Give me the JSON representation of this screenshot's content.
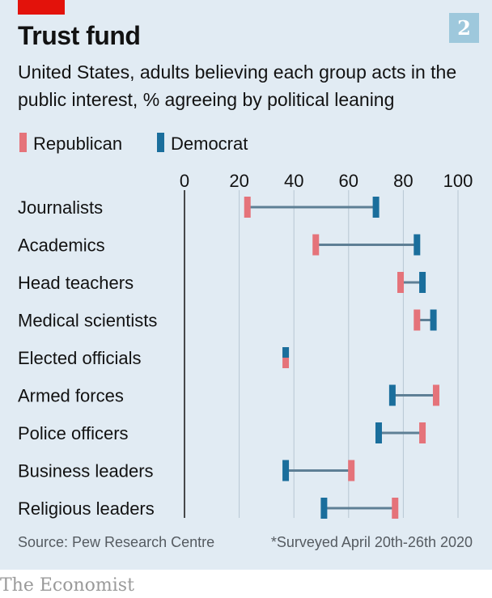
{
  "chart_number": "2",
  "colors": {
    "republican": "#e5737a",
    "democrat": "#1a6e9c",
    "connector": "#5e7f95",
    "panel": "#e1ebf3"
  },
  "chart_data": {
    "type": "dot-range",
    "title": "Trust fund",
    "subtitle": "United States, adults believing each group acts in the public interest, % agreeing by political leaning",
    "xlim": [
      0,
      100
    ],
    "xticks": [
      "0",
      "20",
      "40",
      "60",
      "80",
      "100"
    ],
    "legend_position": "top-left",
    "categories": [
      "Journalists",
      "Academics",
      "Head teachers",
      "Medical scientists",
      "Elected officials",
      "Armed forces",
      "Police officers",
      "Business leaders",
      "Religious leaders"
    ],
    "series": [
      {
        "name": "Republican",
        "values": [
          23,
          48,
          79,
          85,
          37,
          92,
          87,
          61,
          77
        ]
      },
      {
        "name": "Democrat",
        "values": [
          70,
          85,
          87,
          91,
          37,
          76,
          71,
          37,
          51
        ]
      }
    ]
  },
  "footer": {
    "source": "Source: Pew Research Centre",
    "note": "*Surveyed April 20th-26th 2020"
  },
  "brand": "The Economist"
}
